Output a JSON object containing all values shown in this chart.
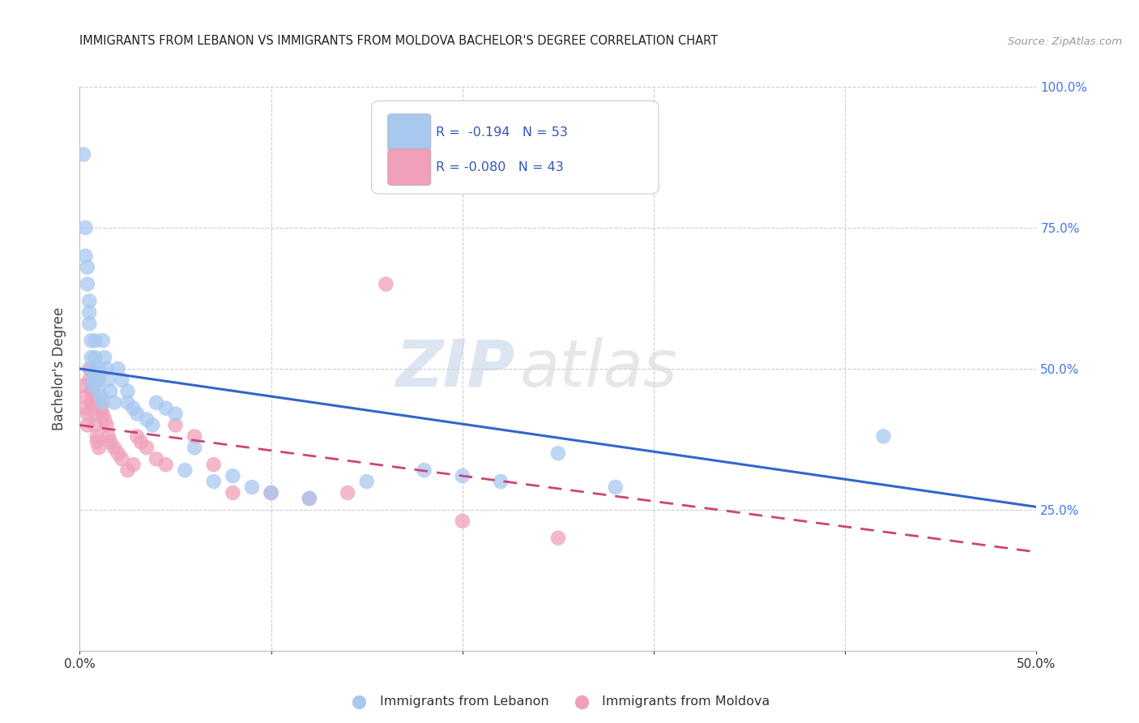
{
  "title": "IMMIGRANTS FROM LEBANON VS IMMIGRANTS FROM MOLDOVA BACHELOR'S DEGREE CORRELATION CHART",
  "source": "Source: ZipAtlas.com",
  "ylabel": "Bachelor's Degree",
  "xlim": [
    0.0,
    0.5
  ],
  "ylim": [
    0.0,
    1.0
  ],
  "xtick_labels": [
    "0.0%",
    "",
    "",
    "",
    "",
    "50.0%"
  ],
  "xtick_vals": [
    0.0,
    0.1,
    0.2,
    0.3,
    0.4,
    0.5
  ],
  "ytick_vals": [
    0.25,
    0.5,
    0.75,
    1.0
  ],
  "right_ytick_labels": [
    "25.0%",
    "50.0%",
    "75.0%",
    "100.0%"
  ],
  "lebanon_color": "#A8C8F0",
  "moldova_color": "#F0A0B8",
  "lebanon_line_color": "#3366CC",
  "moldova_line_color": "#CC4477",
  "legend_R_lebanon": "R =  -0.194",
  "legend_N_lebanon": "N = 53",
  "legend_R_moldova": "R = -0.080",
  "legend_N_moldova": "N = 43",
  "legend_text_color": "#3355BB",
  "watermark_zip": "ZIP",
  "watermark_atlas": "atlas",
  "background_color": "#ffffff",
  "grid_color": "#cccccc",
  "lebanon_x": [
    0.002,
    0.003,
    0.003,
    0.004,
    0.004,
    0.005,
    0.005,
    0.005,
    0.006,
    0.006,
    0.006,
    0.007,
    0.007,
    0.008,
    0.008,
    0.009,
    0.009,
    0.01,
    0.01,
    0.01,
    0.011,
    0.012,
    0.012,
    0.013,
    0.014,
    0.015,
    0.016,
    0.018,
    0.02,
    0.022,
    0.025,
    0.025,
    0.028,
    0.03,
    0.035,
    0.038,
    0.04,
    0.045,
    0.05,
    0.055,
    0.06,
    0.07,
    0.08,
    0.09,
    0.1,
    0.12,
    0.15,
    0.18,
    0.2,
    0.22,
    0.25,
    0.28,
    0.42
  ],
  "lebanon_y": [
    0.88,
    0.75,
    0.7,
    0.68,
    0.65,
    0.62,
    0.6,
    0.58,
    0.55,
    0.52,
    0.5,
    0.48,
    0.47,
    0.55,
    0.52,
    0.5,
    0.48,
    0.5,
    0.48,
    0.46,
    0.45,
    0.44,
    0.55,
    0.52,
    0.5,
    0.48,
    0.46,
    0.44,
    0.5,
    0.48,
    0.46,
    0.44,
    0.43,
    0.42,
    0.41,
    0.4,
    0.44,
    0.43,
    0.42,
    0.32,
    0.36,
    0.3,
    0.31,
    0.29,
    0.28,
    0.27,
    0.3,
    0.32,
    0.31,
    0.3,
    0.35,
    0.29,
    0.38
  ],
  "moldova_x": [
    0.002,
    0.003,
    0.003,
    0.004,
    0.004,
    0.005,
    0.005,
    0.006,
    0.006,
    0.007,
    0.007,
    0.008,
    0.008,
    0.009,
    0.009,
    0.01,
    0.01,
    0.011,
    0.012,
    0.013,
    0.014,
    0.015,
    0.016,
    0.018,
    0.02,
    0.022,
    0.025,
    0.028,
    0.03,
    0.032,
    0.035,
    0.04,
    0.045,
    0.05,
    0.06,
    0.07,
    0.08,
    0.1,
    0.12,
    0.14,
    0.16,
    0.2,
    0.25
  ],
  "moldova_y": [
    0.47,
    0.45,
    0.43,
    0.42,
    0.4,
    0.5,
    0.48,
    0.46,
    0.44,
    0.46,
    0.44,
    0.42,
    0.4,
    0.38,
    0.37,
    0.36,
    0.44,
    0.43,
    0.42,
    0.41,
    0.4,
    0.38,
    0.37,
    0.36,
    0.35,
    0.34,
    0.32,
    0.33,
    0.38,
    0.37,
    0.36,
    0.34,
    0.33,
    0.4,
    0.38,
    0.33,
    0.28,
    0.28,
    0.27,
    0.28,
    0.65,
    0.23,
    0.2
  ]
}
